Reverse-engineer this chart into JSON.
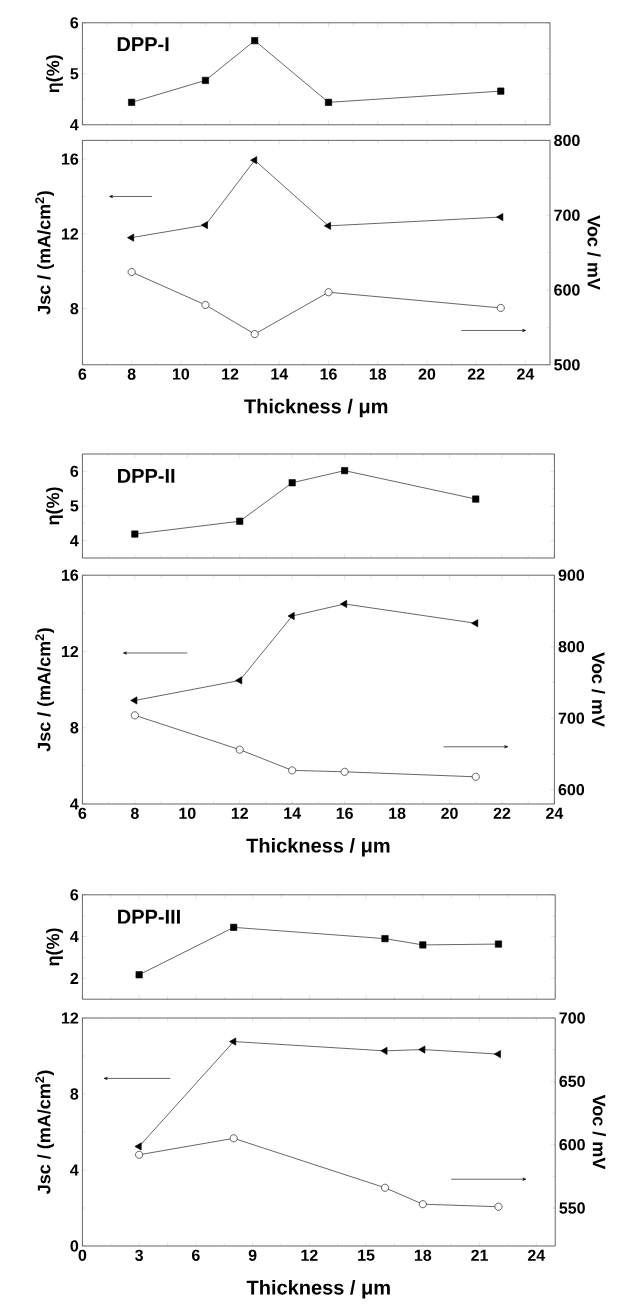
{
  "chart_data": [
    {
      "type": "line",
      "title": "DPP-I",
      "ylabel": "η(%)",
      "x": [
        8,
        11,
        13,
        16,
        23
      ],
      "values": [
        4.44,
        4.87,
        5.65,
        4.44,
        4.66
      ],
      "color": "#000000",
      "marker": "square",
      "xlim": [
        6,
        25
      ],
      "xticks": [
        6,
        8,
        10,
        12,
        14,
        16,
        18,
        20,
        22,
        24
      ],
      "ylim": [
        4,
        6
      ],
      "yticks": [
        4,
        5,
        6
      ],
      "tick_labels": "y"
    },
    {
      "type": "line",
      "xlabel": "Thickness / μm",
      "ylabel": "Jsc / (mA/cm$^{2}$)",
      "y2label": "Voc / mV",
      "x": [
        8,
        11,
        13,
        16,
        23
      ],
      "series": [
        {
          "color": "#000000",
          "marker": "triangle",
          "values": [
            11.8,
            12.47,
            15.94,
            12.43,
            12.9
          ]
        },
        {
          "color": "#000000",
          "marker": "circle",
          "axis": "y2",
          "values": [
            624,
            580,
            541,
            597,
            576
          ]
        }
      ],
      "xlim": [
        6,
        25
      ],
      "xticks": [
        6,
        8,
        10,
        12,
        14,
        16,
        18,
        20,
        22,
        24
      ],
      "ylim": [
        5,
        17
      ],
      "yticks": [
        8,
        12,
        16
      ],
      "y2lim": [
        500,
        800
      ],
      "y2ticks": [
        500,
        600,
        700,
        800
      ]
    },
    {
      "type": "line",
      "title": "DPP-II",
      "ylabel": "η(%)",
      "x": [
        8,
        12,
        14,
        16,
        21
      ],
      "values": [
        4.19,
        4.56,
        5.67,
        6.02,
        5.2
      ],
      "color": "#000000",
      "marker": "square",
      "xlim": [
        6,
        24
      ],
      "xticks": [
        6,
        8,
        10,
        12,
        14,
        16,
        18,
        20,
        22,
        24
      ],
      "ylim": [
        3.5,
        6.5
      ],
      "yticks": [
        4,
        5,
        6
      ],
      "tick_labels": "y"
    },
    {
      "type": "line",
      "xlabel": "Thickness / μm",
      "ylabel": "Jsc / (mA/cm$^{2}$)",
      "y2label": "Voc / mV",
      "x": [
        8,
        12,
        14,
        16,
        21
      ],
      "series": [
        {
          "color": "#000000",
          "marker": "triangle",
          "values": [
            9.43,
            10.48,
            13.86,
            14.49,
            13.48
          ]
        },
        {
          "color": "#000000",
          "marker": "circle",
          "axis": "y2",
          "values": [
            704,
            656,
            627,
            625,
            618
          ]
        }
      ],
      "xlim": [
        6,
        24
      ],
      "xticks": [
        6,
        8,
        10,
        12,
        14,
        16,
        18,
        20,
        22,
        24
      ],
      "ylim": [
        4,
        16
      ],
      "yticks": [
        4,
        8,
        12,
        16
      ],
      "y2lim": [
        580,
        900
      ],
      "y2ticks": [
        600,
        700,
        800,
        900
      ]
    },
    {
      "type": "line",
      "title": "DPP-III",
      "ylabel": "η(%)",
      "x": [
        3,
        8,
        16,
        18,
        22
      ],
      "values": [
        2.17,
        4.44,
        3.9,
        3.6,
        3.64
      ],
      "color": "#000000",
      "marker": "square",
      "xlim": [
        0,
        25
      ],
      "xticks": [
        0,
        3,
        6,
        9,
        12,
        15,
        18,
        21,
        24
      ],
      "ylim": [
        1,
        6
      ],
      "yticks": [
        2,
        4,
        6
      ],
      "tick_labels": "y"
    },
    {
      "type": "line",
      "xlabel": "Thickness / μm",
      "ylabel": "Jsc / (mA/cm$^{2}$)",
      "y2label": "Voc / mV",
      "x": [
        3,
        8,
        16,
        18,
        22
      ],
      "series": [
        {
          "color": "#000000",
          "marker": "triangle",
          "values": [
            5.24,
            10.76,
            10.27,
            10.34,
            10.1
          ]
        },
        {
          "color": "#000000",
          "marker": "circle",
          "axis": "y2",
          "values": [
            592,
            605,
            566,
            553,
            551
          ]
        }
      ],
      "xlim": [
        0,
        25
      ],
      "xticks": [
        0,
        3,
        6,
        9,
        12,
        15,
        18,
        21,
        24
      ],
      "ylim": [
        0,
        12
      ],
      "yticks": [
        0,
        4,
        8,
        12
      ],
      "y2lim": [
        520,
        700
      ],
      "y2ticks": [
        550,
        600,
        650,
        700
      ]
    }
  ]
}
